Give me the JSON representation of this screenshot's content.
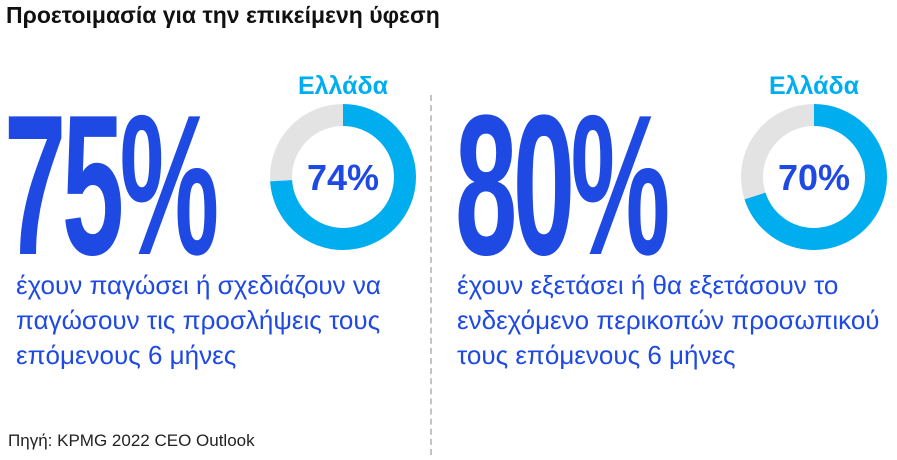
{
  "title": "Προετοιμασία για την επικείμενη ύφεση",
  "source": "Πηγή: KPMG 2022 CEO Outlook",
  "colors": {
    "primary": "#1e49e2",
    "accent": "#00aeef",
    "track": "#e3e3e3",
    "text": "#111111"
  },
  "chart_data": [
    {
      "type": "pie",
      "headline_value": "75%",
      "donut_title": "Ελλάδα",
      "slices": [
        {
          "label": "74%",
          "value": 74
        },
        {
          "label": "",
          "value": 26
        }
      ],
      "description": "έχουν παγώσει ή σχεδιάζουν να παγώσουν τις προσλήψεις τους επόμενους 6 μήνες"
    },
    {
      "type": "pie",
      "headline_value": "80%",
      "donut_title": "Ελλάδα",
      "slices": [
        {
          "label": "70%",
          "value": 70
        },
        {
          "label": "",
          "value": 30
        }
      ],
      "description": "έχουν εξετάσει ή θα εξετάσουν το ενδεχόμενο περικοπών προσωπικού τους επόμενους 6 μήνες"
    }
  ]
}
